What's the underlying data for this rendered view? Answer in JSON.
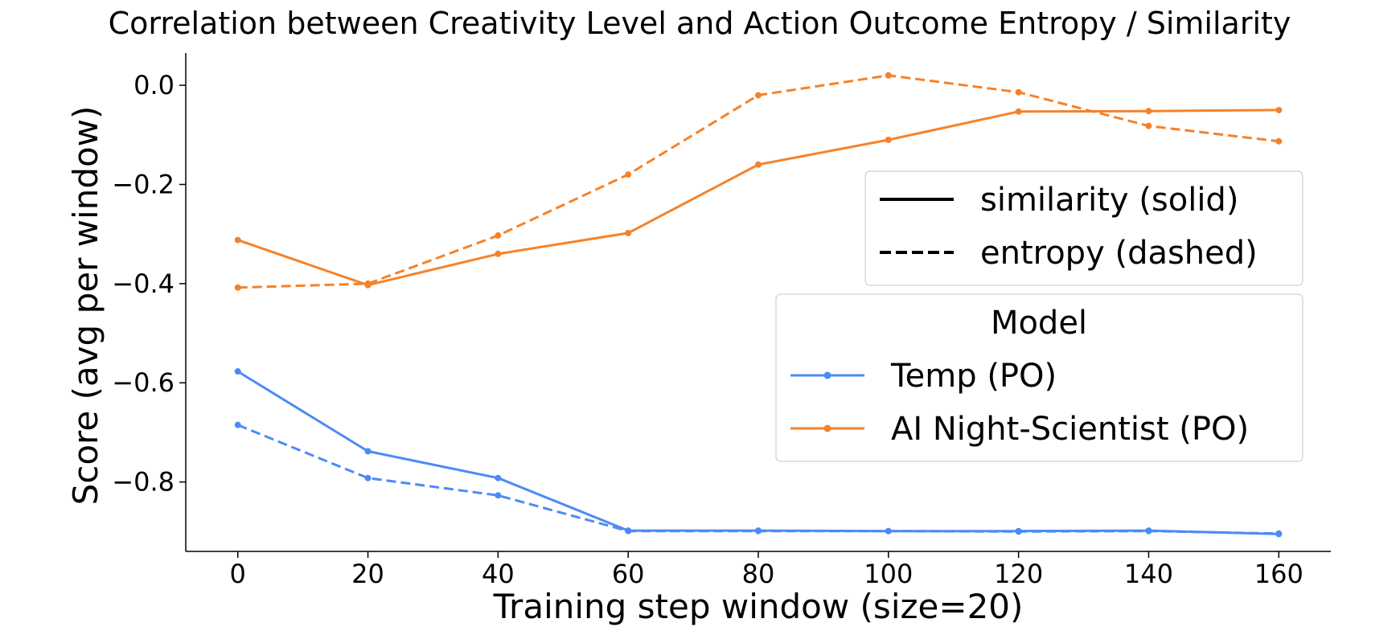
{
  "chart_data": {
    "type": "line",
    "title": "Correlation between Creativity Level and Action Outcome Entropy / Similarity",
    "xlabel": "Training step window (size=20)",
    "ylabel": "Score (avg per window)",
    "x": [
      0,
      20,
      40,
      60,
      80,
      100,
      120,
      140,
      160
    ],
    "xlim": [
      -8,
      168
    ],
    "ylim": [
      -0.94,
      0.065
    ],
    "xticks": [
      0,
      20,
      40,
      60,
      80,
      100,
      120,
      140,
      160
    ],
    "yticks": [
      0.0,
      -0.2,
      -0.4,
      -0.6,
      -0.8
    ],
    "ytick_labels": [
      "0.0",
      "−0.2",
      "−0.4",
      "−0.6",
      "−0.8"
    ],
    "grid": false,
    "series": [
      {
        "name": "Temp (PO)",
        "metric": "similarity",
        "style": "solid",
        "color": "#4c8bf5",
        "values": [
          -0.577,
          -0.738,
          -0.792,
          -0.898,
          -0.898,
          -0.899,
          -0.899,
          -0.898,
          -0.905
        ]
      },
      {
        "name": "Temp (PO)",
        "metric": "entropy",
        "style": "dashed",
        "color": "#4c8bf5",
        "values": [
          -0.685,
          -0.792,
          -0.827,
          -0.899,
          -0.899,
          -0.899,
          -0.9,
          -0.899,
          -0.904
        ]
      },
      {
        "name": "AI Night-Scientist (PO)",
        "metric": "similarity",
        "style": "solid",
        "color": "#f5822a",
        "values": [
          -0.312,
          -0.403,
          -0.34,
          -0.298,
          -0.16,
          -0.11,
          -0.053,
          -0.052,
          -0.05
        ]
      },
      {
        "name": "AI Night-Scientist (PO)",
        "metric": "entropy",
        "style": "dashed",
        "color": "#f5822a",
        "values": [
          -0.408,
          -0.4,
          -0.303,
          -0.18,
          -0.02,
          0.02,
          -0.014,
          -0.082,
          -0.113
        ]
      }
    ],
    "legends": {
      "style_legend": {
        "placement": "right-upper",
        "entries": [
          {
            "label": "similarity (solid)",
            "style": "solid"
          },
          {
            "label": "entropy (dashed)",
            "style": "dashed"
          }
        ]
      },
      "model_legend": {
        "placement": "right-center",
        "title": "Model",
        "entries": [
          {
            "label": "Temp (PO)",
            "color": "#4c8bf5"
          },
          {
            "label": "AI Night-Scientist (PO)",
            "color": "#f5822a"
          }
        ]
      }
    }
  }
}
